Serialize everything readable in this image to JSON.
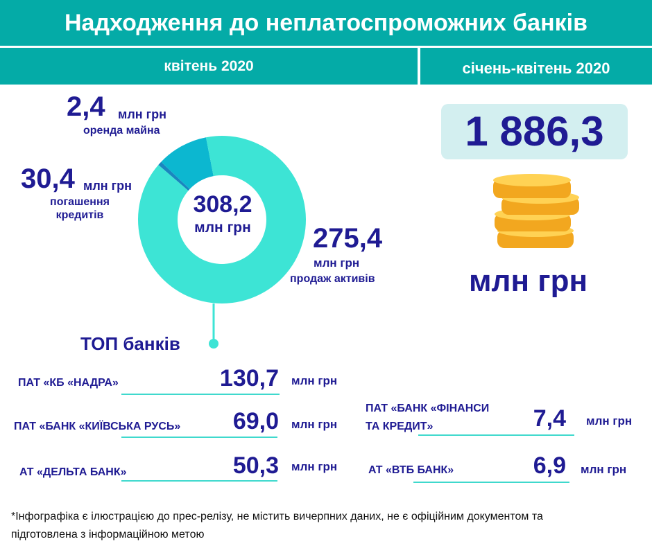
{
  "header": {
    "title": "Надходження до неплатоспроможних банків"
  },
  "periods": {
    "month": "квітень 2020",
    "range": "січень-квітень 2020"
  },
  "donut": {
    "center_value": "308,2",
    "center_unit": "млн грн",
    "labels": [
      {
        "value": "2,4",
        "unit": "млн грн",
        "desc": "оренда майна"
      },
      {
        "value": "30,4",
        "unit": "млн грн",
        "desc_line1": "погашення",
        "desc_line2": "кредитів"
      },
      {
        "value": "275,4",
        "unit": "млн грн",
        "desc": "продаж активів"
      }
    ],
    "colors": [
      "#1a86bf",
      "#0cb7d0",
      "#3de4d5"
    ]
  },
  "chart_data": {
    "type": "pie",
    "categories": [
      "оренда майна",
      "погашення кредитів",
      "продаж активів"
    ],
    "values": [
      2.4,
      30.4,
      275.4
    ],
    "total": 308.2
  },
  "total": {
    "value": "1 886,3",
    "unit": "млн грн"
  },
  "top": {
    "title": "ТОП банків",
    "banks_left": [
      {
        "name": "ПАТ «КБ «НАДРА»",
        "value": "130,7",
        "unit": "млн грн"
      },
      {
        "name": "ПАТ «БАНК «КИЇВСЬКА РУСЬ»",
        "value": "69,0",
        "unit": "млн грн"
      },
      {
        "name": "АТ «ДЕЛЬТА БАНК»",
        "value": "50,3",
        "unit": "млн грн"
      }
    ],
    "banks_right": [
      {
        "name_line1": "ПАТ «БАНК «ФІНАНСИ",
        "name_line2": "ТА КРЕДИТ»",
        "value": "7,4",
        "unit": "млн грн"
      },
      {
        "name": "АТ «ВТБ БАНК»",
        "value": "6,9",
        "unit": "млн грн"
      }
    ]
  },
  "footnote": {
    "line1": "*Інфографіка є ілюстрацією до прес-релізу, не містить вичерпних даних, не є офіційним документом та",
    "line2": "підготовлена з інформаційною метою"
  }
}
